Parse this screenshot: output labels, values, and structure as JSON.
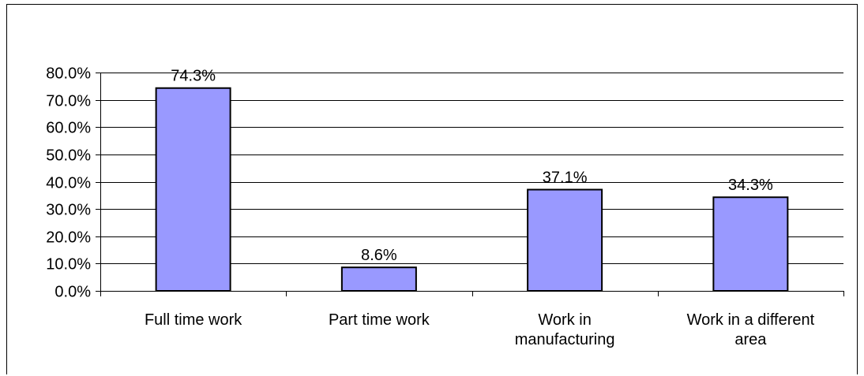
{
  "chart_data": {
    "type": "bar",
    "categories": [
      [
        "Full time work"
      ],
      [
        "Part time work"
      ],
      [
        "Work in",
        "manufacturing"
      ],
      [
        "Work in a different",
        "area"
      ]
    ],
    "values": [
      74.3,
      8.6,
      37.1,
      34.3
    ],
    "data_labels": [
      "74.3%",
      "8.6%",
      "37.1%",
      "34.3%"
    ],
    "ylim": [
      0,
      80
    ],
    "yticks": [
      0,
      10,
      20,
      30,
      40,
      50,
      60,
      70,
      80
    ],
    "ytick_labels": [
      "0.0%",
      "10.0%",
      "20.0%",
      "30.0%",
      "40.0%",
      "50.0%",
      "60.0%",
      "70.0%",
      "80.0%"
    ],
    "grid": true,
    "legend": "none",
    "colors": {
      "bar_fill": "#9999ff",
      "bar_stroke": "#000000",
      "grid": "#000000",
      "axis": "#000000"
    }
  }
}
